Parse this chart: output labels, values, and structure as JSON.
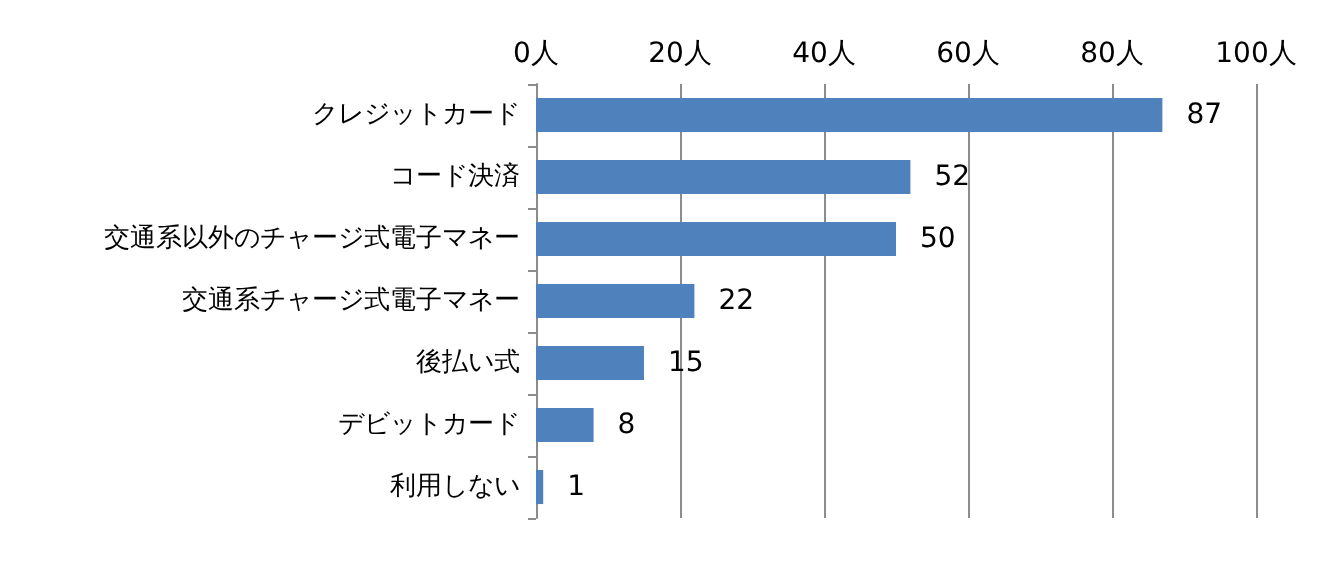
{
  "chart_data": {
    "type": "bar",
    "orientation": "horizontal",
    "categories": [
      "クレジットカード",
      "コード決済",
      "交通系以外のチャージ式電子マネー",
      "交通系チャージ式電子マネー",
      "後払い式",
      "デビットカード",
      "利用しない"
    ],
    "values": [
      87,
      52,
      50,
      22,
      15,
      8,
      1
    ],
    "color": "#4f81bd",
    "xlim": [
      0,
      100
    ],
    "xticks": [
      {
        "value": 0,
        "label": "0人"
      },
      {
        "value": 20,
        "label": "20人"
      },
      {
        "value": 40,
        "label": "40人"
      },
      {
        "value": 60,
        "label": "60人"
      },
      {
        "value": 80,
        "label": "80人"
      },
      {
        "value": 100,
        "label": "100人"
      }
    ],
    "grid": "x",
    "data_labels": true
  }
}
